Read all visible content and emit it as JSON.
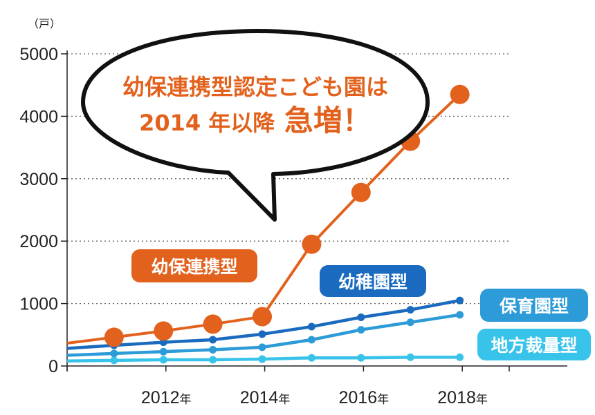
{
  "chart_data": {
    "type": "line",
    "unit_label": "（戸）",
    "y_ticks": [
      0,
      1000,
      2000,
      3000,
      4000,
      5000
    ],
    "ylim": [
      0,
      5000
    ],
    "x_ticks": [
      {
        "year": 2012,
        "label": "2012",
        "suffix": "年"
      },
      {
        "year": 2014,
        "label": "2014",
        "suffix": "年"
      },
      {
        "year": 2016,
        "label": "2016",
        "suffix": "年"
      },
      {
        "year": 2018,
        "label": "2018",
        "suffix": "年"
      }
    ],
    "x": [
      2011,
      2012,
      2013,
      2014,
      2015,
      2016,
      2017,
      2018
    ],
    "xlim": [
      2010.05,
      2019.0
    ],
    "grid": true,
    "series": [
      {
        "name": "幼保連携型",
        "color": "#e2621d",
        "values": [
          460,
          560,
          670,
          790,
          1950,
          2780,
          3600,
          4350
        ],
        "marker": "large"
      },
      {
        "name": "幼稚園型",
        "color": "#1a6bbf",
        "values": [
          330,
          380,
          420,
          510,
          630,
          780,
          900,
          1050
        ],
        "marker": "small"
      },
      {
        "name": "保育園型",
        "color": "#2c9bd7",
        "values": [
          200,
          230,
          260,
          300,
          420,
          580,
          700,
          820
        ],
        "marker": "small"
      },
      {
        "name": "地方裁量型",
        "color": "#38c3ea",
        "values": [
          90,
          100,
          100,
          110,
          130,
          130,
          140,
          140
        ],
        "marker": "small"
      }
    ],
    "callout": {
      "line1": "幼保連携型認定こども園は",
      "line2_prefix": "2014 年以降",
      "line2_emphasis": "急増！"
    }
  }
}
